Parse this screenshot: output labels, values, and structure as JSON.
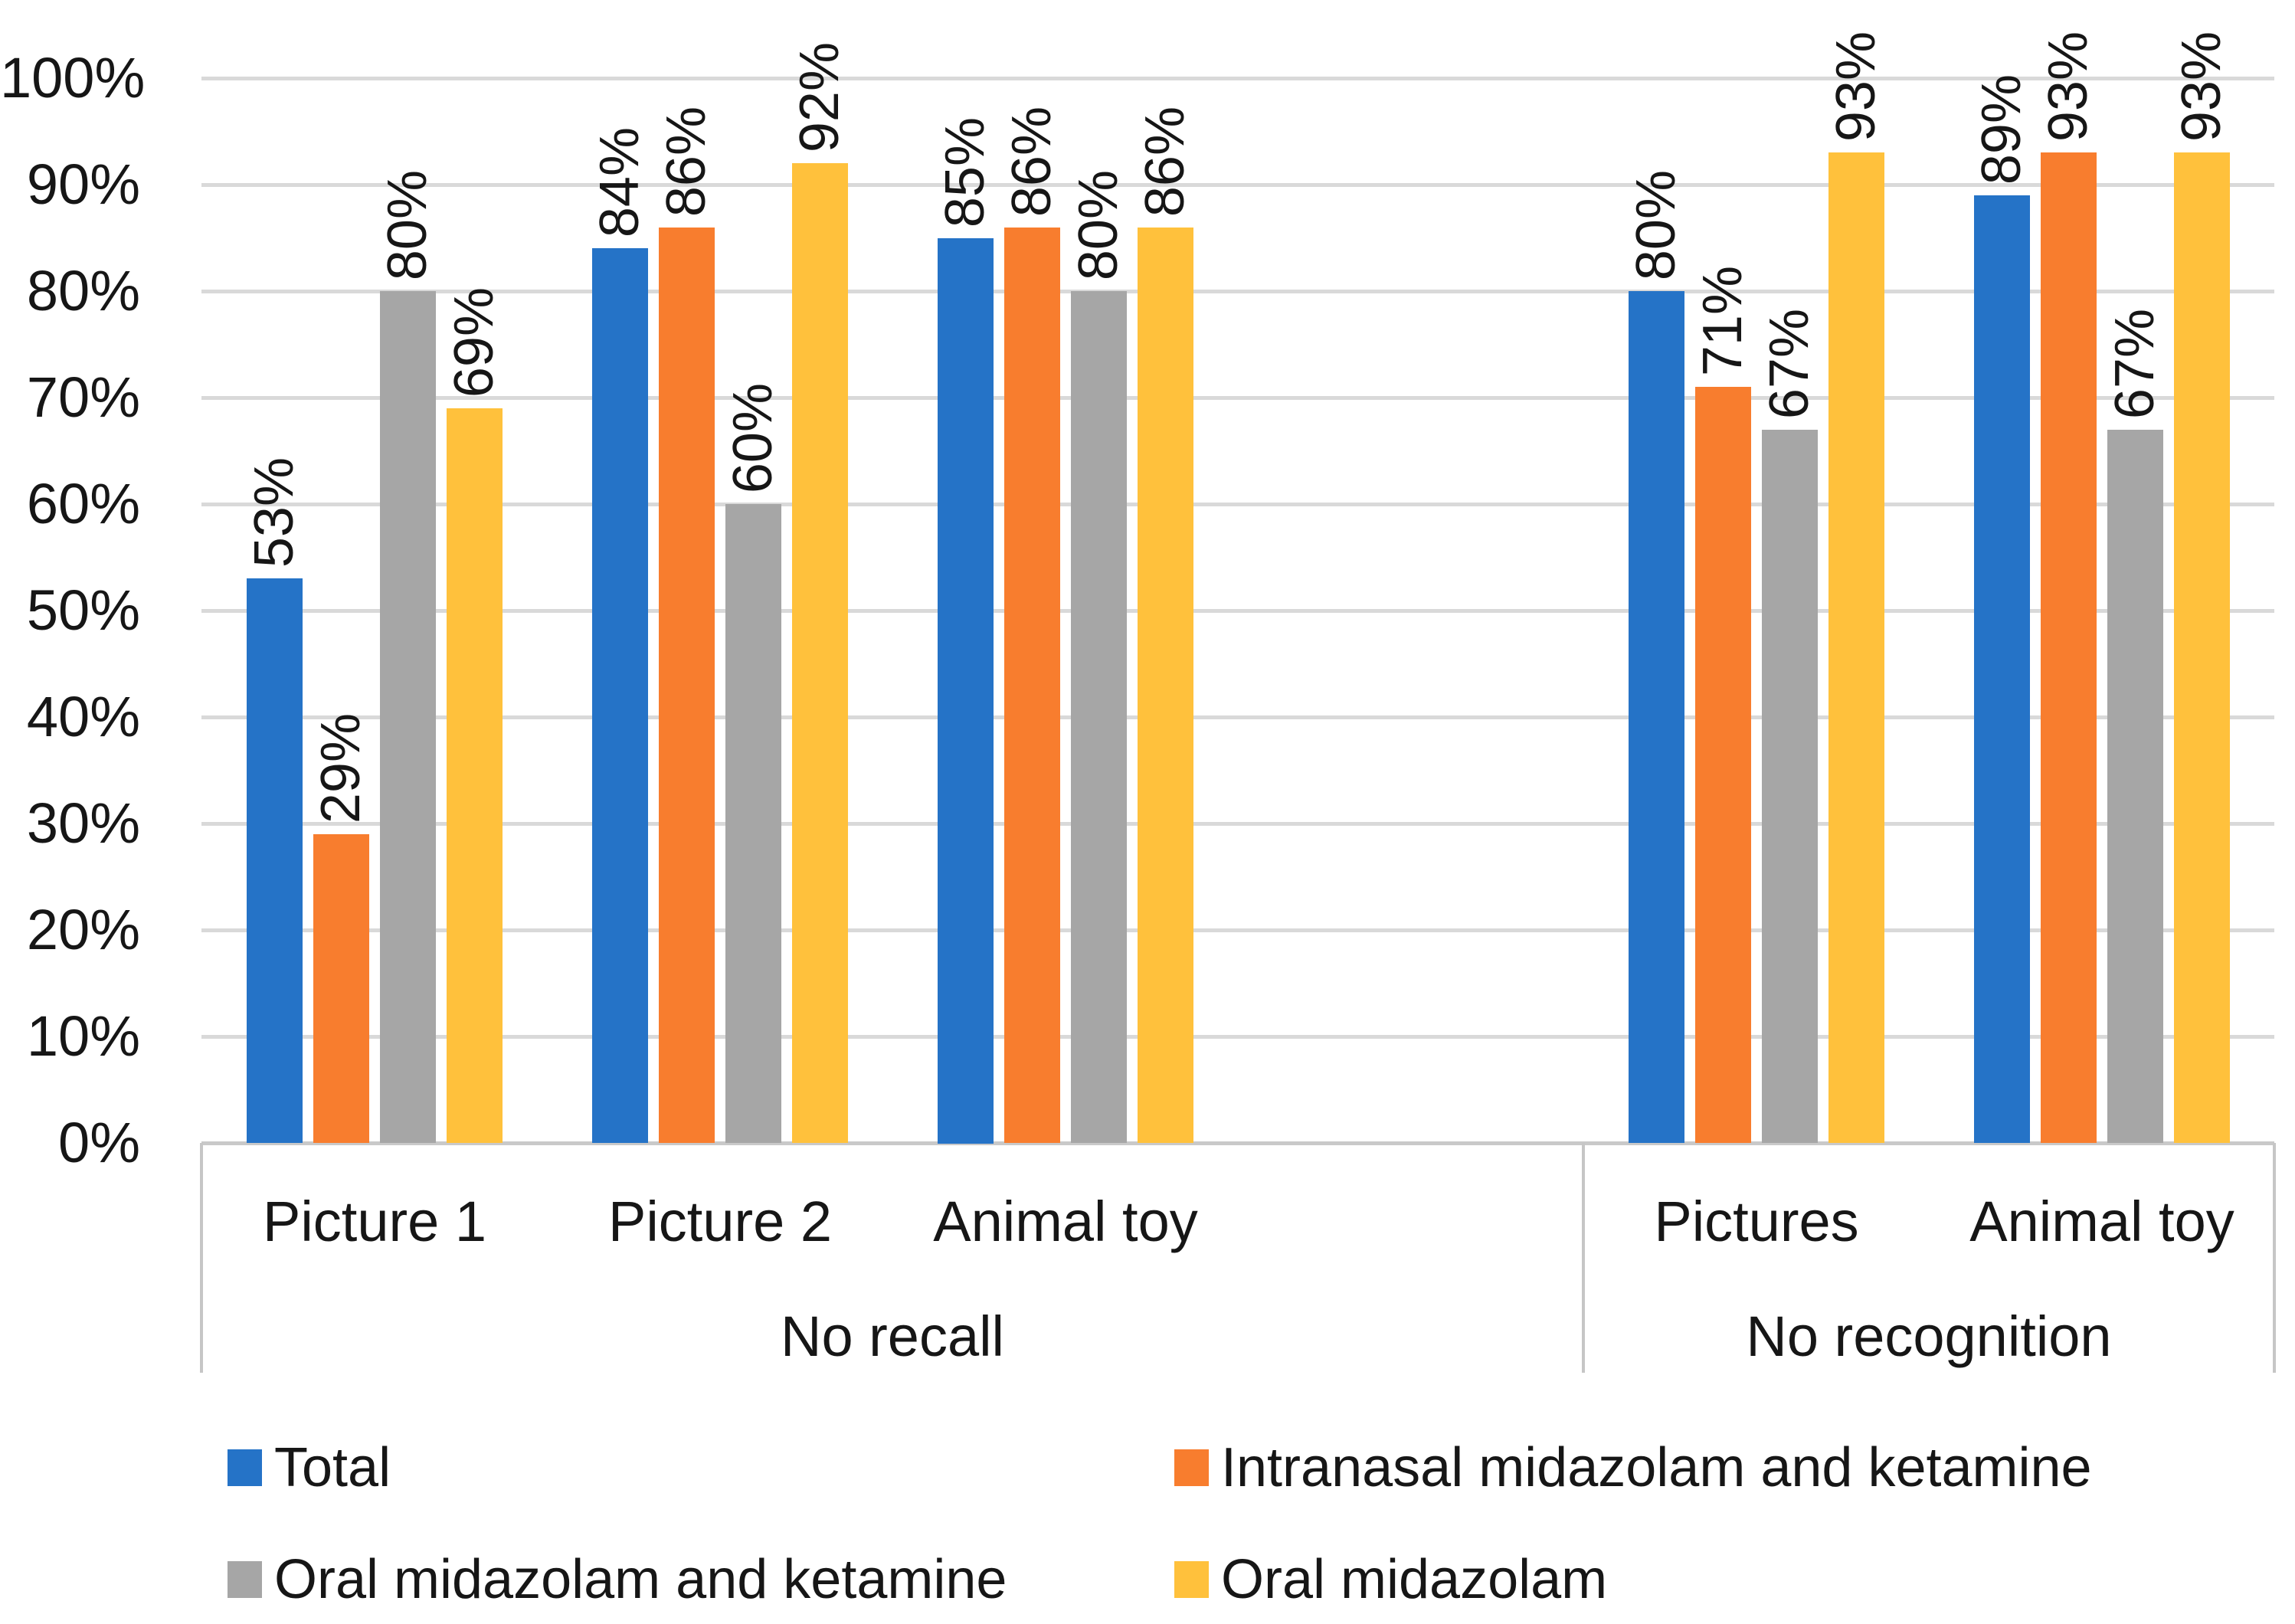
{
  "chart_data": {
    "type": "bar",
    "title": "",
    "xlabel": "",
    "ylabel": "",
    "ylim": [
      0,
      100
    ],
    "grid": true,
    "legend_position": "bottom",
    "y_axis": {
      "ticks": [
        "0%",
        "10%",
        "20%",
        "30%",
        "40%",
        "50%",
        "60%",
        "70%",
        "80%",
        "90%",
        "100%"
      ]
    },
    "series": [
      {
        "name": "Total",
        "color": "#2573c7"
      },
      {
        "name": "Intranasal midazolam and ketamine",
        "color": "#f87d2e"
      },
      {
        "name": "Oral midazolam and ketamine",
        "color": "#a6a6a6"
      },
      {
        "name": "Oral midazolam",
        "color": "#ffc13c"
      }
    ],
    "groups": [
      {
        "label": "No recall",
        "categories": [
          {
            "label": "Picture 1",
            "values": [
              53,
              29,
              80,
              69
            ],
            "data_labels": [
              "53%",
              "29%",
              "80%",
              "69%"
            ]
          },
          {
            "label": "Picture 2",
            "values": [
              84,
              86,
              60,
              92
            ],
            "data_labels": [
              "84%",
              "86%",
              "60%",
              "92%"
            ]
          },
          {
            "label": "Animal toy",
            "values": [
              85,
              86,
              80,
              86
            ],
            "data_labels": [
              "85%",
              "86%",
              "80%",
              "86%"
            ]
          }
        ]
      },
      {
        "label": "No recognition",
        "categories": [
          {
            "label": "Pictures",
            "values": [
              80,
              71,
              67,
              93
            ],
            "data_labels": [
              "80%",
              "71%",
              "67%",
              "93%"
            ]
          },
          {
            "label": "Animal toy",
            "values": [
              89,
              93,
              67,
              93
            ],
            "data_labels": [
              "89%",
              "93%",
              "67%",
              "93%"
            ]
          }
        ]
      }
    ]
  }
}
